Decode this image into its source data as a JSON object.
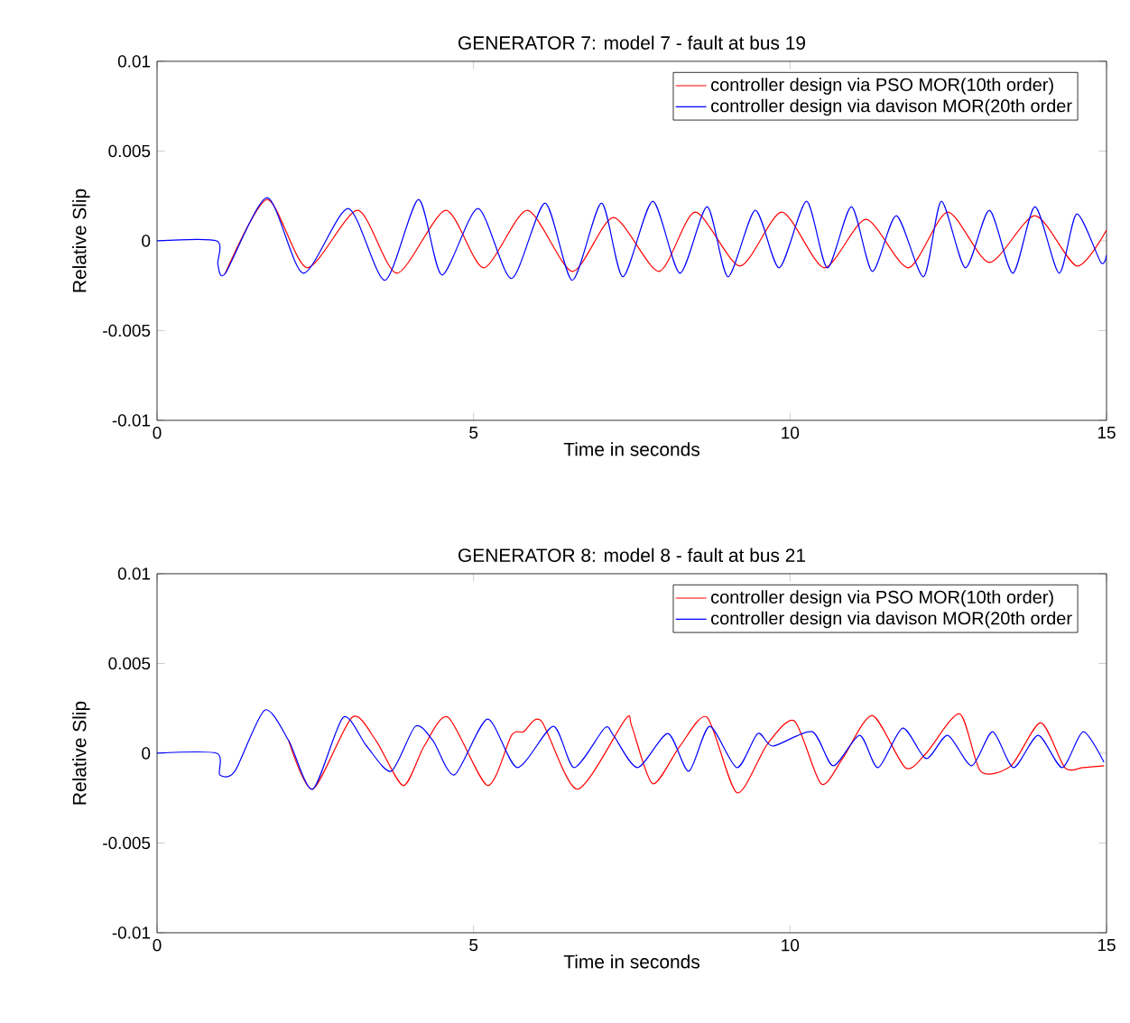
{
  "chart_data": [
    {
      "type": "line",
      "title": "GENERATOR 7: model 7 - fault at bus 19",
      "xlabel": "Time in seconds",
      "ylabel": "Relative Slip",
      "xlim": [
        0,
        15
      ],
      "ylim": [
        -0.01,
        0.01
      ],
      "xticks": [
        0,
        5,
        10,
        15
      ],
      "yticks": [
        -0.01,
        -0.005,
        0,
        0.005,
        0.01
      ],
      "legend": "top right",
      "grid": false,
      "series": [
        {
          "name": "controller design via PSO MOR(10th order)",
          "color": "#ff0000",
          "x": [
            1.08,
            1.74,
            2.37,
            3.17,
            3.79,
            4.56,
            5.16,
            5.85,
            6.56,
            7.21,
            7.93,
            8.5,
            9.21,
            9.87,
            10.54,
            11.2,
            11.87,
            12.49,
            13.15,
            13.87,
            14.53,
            15
          ],
          "values": [
            -0.0018,
            0.0023,
            -0.0015,
            0.0017,
            -0.0018,
            0.0017,
            -0.0015,
            0.0017,
            -0.0017,
            0.0013,
            -0.0017,
            0.0016,
            -0.0014,
            0.0016,
            -0.0015,
            0.0012,
            -0.0015,
            0.0016,
            -0.0012,
            0.0014,
            -0.0014,
            0.0006
          ]
        },
        {
          "name": "controller design via davison MOR(20th order",
          "color": "#0000ff",
          "x": [
            0,
            0.94,
            0.96,
            1.08,
            1.74,
            2.31,
            3.02,
            3.6,
            4.13,
            4.5,
            5.07,
            5.6,
            6.13,
            6.56,
            7.02,
            7.36,
            7.83,
            8.26,
            8.69,
            9.02,
            9.45,
            9.83,
            10.26,
            10.59,
            10.97,
            11.3,
            11.68,
            12.11,
            12.39,
            12.77,
            13.15,
            13.52,
            13.87,
            14.25,
            14.53,
            14.91,
            15
          ],
          "values": [
            0,
            0,
            -0.0013,
            -0.0018,
            0.0024,
            -0.0018,
            0.0018,
            -0.0022,
            0.0023,
            -0.0019,
            0.0018,
            -0.0021,
            0.0021,
            -0.0022,
            0.0021,
            -0.002,
            0.0022,
            -0.0018,
            0.0019,
            -0.002,
            0.0017,
            -0.0015,
            0.0022,
            -0.0015,
            0.0019,
            -0.0017,
            0.0014,
            -0.002,
            0.0022,
            -0.0015,
            0.0017,
            -0.0018,
            0.0019,
            -0.0018,
            0.0015,
            -0.0012,
            -0.0008
          ]
        }
      ]
    },
    {
      "type": "line",
      "title": "GENERATOR 8: model 8 - fault at bus 21",
      "xlabel": "Time in seconds",
      "ylabel": "Relative Slip",
      "xlim": [
        0,
        15
      ],
      "ylim": [
        -0.01,
        0.01
      ],
      "xticks": [
        0,
        5,
        10,
        15
      ],
      "yticks": [
        -0.01,
        -0.005,
        0,
        0.005,
        0.01
      ],
      "legend": "top right",
      "grid": false,
      "series": [
        {
          "name": "controller design via PSO MOR(10th order)",
          "color": "#ff0000",
          "x": [
            2.08,
            2.46,
            3.08,
            3.46,
            3.89,
            4.22,
            4.6,
            5.22,
            5.6,
            5.79,
            6.07,
            6.64,
            7.4,
            7.5,
            7.83,
            8.26,
            8.69,
            9.16,
            9.64,
            10.07,
            10.49,
            10.83,
            11.3,
            11.82,
            12.15,
            12.68,
            13.01,
            13.49,
            13.96,
            14.34,
            14.63,
            14.96
          ],
          "values": [
            0.0007,
            -0.002,
            0.002,
            0.0007,
            -0.0018,
            0.0004,
            0.002,
            -0.0018,
            0.001,
            0.0012,
            0.0018,
            -0.002,
            0.0019,
            0.0015,
            -0.0017,
            0.0004,
            0.002,
            -0.0022,
            0.0005,
            0.0018,
            -0.0017,
            -0.0003,
            0.0021,
            -0.0008,
            0,
            0.0022,
            -0.001,
            -0.0007,
            0.0017,
            -0.0008,
            -0.0008,
            -0.0007
          ]
        },
        {
          "name": "controller design via davison MOR(20th order",
          "color": "#0000ff",
          "x": [
            0,
            0.94,
            0.99,
            1.23,
            1.7,
            2.08,
            2.46,
            2.94,
            3.31,
            3.7,
            4.08,
            4.36,
            4.7,
            5.22,
            5.69,
            6.26,
            6.59,
            7.07,
            7.21,
            7.59,
            8.07,
            8.4,
            8.73,
            9.16,
            9.49,
            9.73,
            10.35,
            10.68,
            11.1,
            11.39,
            11.78,
            12.15,
            12.49,
            12.87,
            13.2,
            13.53,
            13.92,
            14.3,
            14.63,
            14.96
          ],
          "values": [
            0,
            0,
            -0.0012,
            -0.001,
            0.0024,
            0.0007,
            -0.002,
            0.002,
            0.0004,
            -0.001,
            0.0015,
            0.0007,
            -0.0012,
            0.0019,
            -0.0008,
            0.0015,
            -0.0008,
            0.0014,
            0.001,
            -0.0008,
            0.0011,
            -0.001,
            0.0015,
            -0.0008,
            0.0011,
            0.0004,
            0.0012,
            -0.0007,
            0.001,
            -0.0008,
            0.0014,
            -0.0003,
            0.001,
            -0.0007,
            0.0012,
            -0.0008,
            0.001,
            -0.0008,
            0.0012,
            -0.0005
          ]
        }
      ]
    }
  ]
}
